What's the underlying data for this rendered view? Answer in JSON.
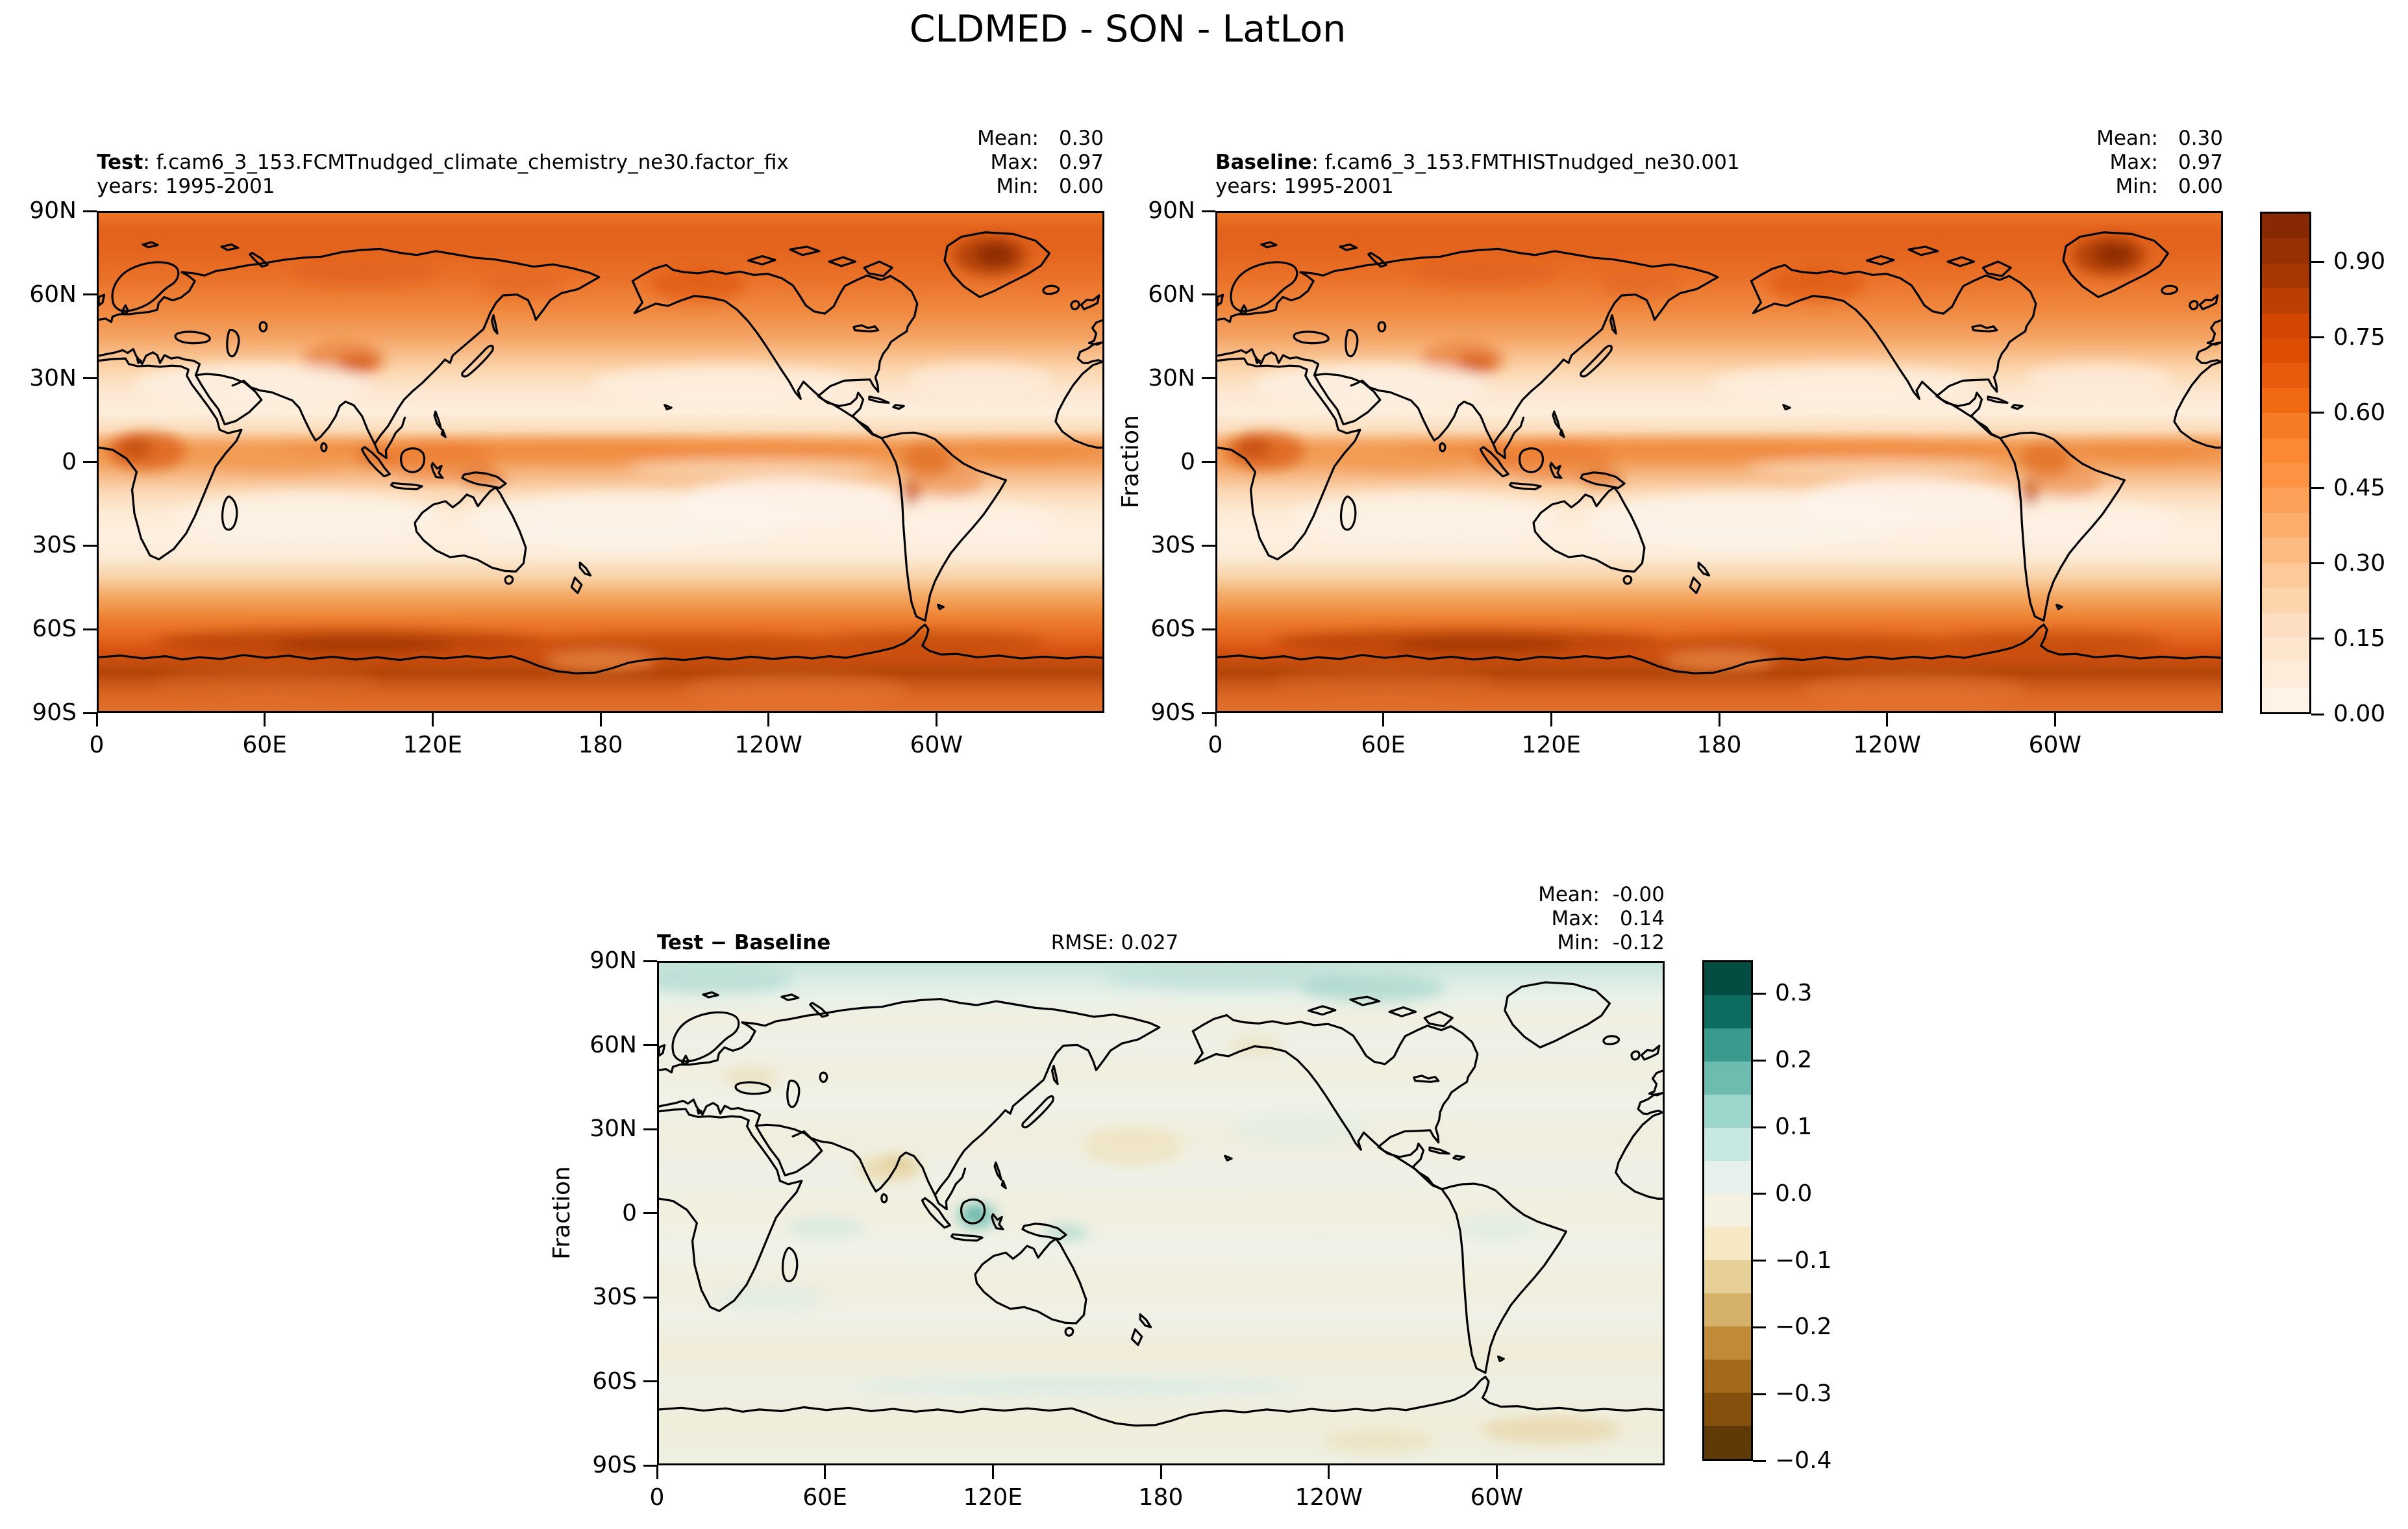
{
  "title": "CLDMED - SON - LatLon",
  "panels": {
    "test": {
      "title_bold": "Test",
      "title_rest": ": f.cam6_3_153.FCMTnudged_climate_chemistry_ne30.factor_fix",
      "years": "years: 1995-2001",
      "stats": {
        "mean_label": "Mean:",
        "mean": "0.30",
        "max_label": "Max:",
        "max": "0.97",
        "min_label": "Min:",
        "min": "0.00"
      }
    },
    "baseline": {
      "title_bold": "Baseline",
      "title_rest": ": f.cam6_3_153.FMTHISTnudged_ne30.001",
      "years": "years: 1995-2001",
      "stats": {
        "mean_label": "Mean:",
        "mean": "0.30",
        "max_label": "Max:",
        "max": "0.97",
        "min_label": "Min:",
        "min": "0.00"
      }
    },
    "diff": {
      "title_bold": "Test − Baseline",
      "rmse": "RMSE: 0.027",
      "stats": {
        "mean_label": "Mean:",
        "mean": "-0.00",
        "max_label": "Max:",
        "max": "0.14",
        "min_label": "Min:",
        "min": "-0.12"
      }
    }
  },
  "axes": {
    "ylabel": "Fraction",
    "lat_ticks": [
      "90N",
      "60N",
      "30N",
      "0",
      "30S",
      "60S",
      "90S"
    ],
    "lon_ticks": [
      "0",
      "60E",
      "120E",
      "180",
      "120W",
      "60W"
    ]
  },
  "colorbar_top": {
    "tick_labels": [
      "0.90",
      "0.75",
      "0.60",
      "0.45",
      "0.30",
      "0.15",
      "0.00"
    ],
    "tick_values": [
      0.9,
      0.75,
      0.6,
      0.45,
      0.3,
      0.15,
      0.0
    ],
    "colors_top_to_bottom": [
      "#872a04",
      "#973103",
      "#a63603",
      "#bc3f02",
      "#d24601",
      "#de4d04",
      "#e75c0c",
      "#f16913",
      "#f57b24",
      "#fa8834",
      "#fd9343",
      "#fda158",
      "#fdae6b",
      "#fdbb81",
      "#fdc99b",
      "#fdd4ab",
      "#fedec3",
      "#fee6ce",
      "#feebd9",
      "#fff2e6"
    ]
  },
  "colorbar_diff": {
    "tick_labels": [
      "0.3",
      "0.2",
      "0.1",
      "0.0",
      "−0.1",
      "−0.2",
      "−0.3",
      "−0.4"
    ],
    "tick_values": [
      0.3,
      0.2,
      0.1,
      0.0,
      -0.1,
      -0.2,
      -0.3,
      -0.4
    ],
    "colors_top_to_bottom": [
      "#024c42",
      "#0d6b60",
      "#3a9a8d",
      "#6cbcb0",
      "#9cd6cb",
      "#c8e8e2",
      "#e6f1ee",
      "#f4f0e2",
      "#f5e8c2",
      "#e7d098",
      "#d6b169",
      "#c08a38",
      "#a5691c",
      "#84500b",
      "#5f3a06"
    ]
  },
  "chart_data": {
    "type": "heatmap",
    "variable": "CLDMED",
    "season": "SON",
    "projection": "LatLon",
    "units": "Fraction",
    "lat_ticks": [
      "90N",
      "60N",
      "30N",
      "0",
      "30S",
      "60S",
      "90S"
    ],
    "lon_ticks": [
      "0",
      "60E",
      "120E",
      "180",
      "120W",
      "60W"
    ],
    "panels": [
      {
        "name": "Test",
        "dataset": "f.cam6_3_153.FCMTnudged_climate_chemistry_ne30.factor_fix",
        "years": "1995-2001",
        "stats": {
          "mean": 0.3,
          "max": 0.97,
          "min": 0.0
        },
        "colormap": "Oranges",
        "levels": [
          0,
          0.05,
          0.1,
          0.15,
          0.2,
          0.25,
          0.3,
          0.35,
          0.4,
          0.45,
          0.5,
          0.55,
          0.6,
          0.65,
          0.7,
          0.75,
          0.8,
          0.85,
          0.9,
          0.95,
          1.0
        ]
      },
      {
        "name": "Baseline",
        "dataset": "f.cam6_3_153.FMTHISTnudged_ne30.001",
        "years": "1995-2001",
        "stats": {
          "mean": 0.3,
          "max": 0.97,
          "min": 0.0
        },
        "colormap": "Oranges",
        "levels": [
          0,
          0.05,
          0.1,
          0.15,
          0.2,
          0.25,
          0.3,
          0.35,
          0.4,
          0.45,
          0.5,
          0.55,
          0.6,
          0.65,
          0.7,
          0.75,
          0.8,
          0.85,
          0.9,
          0.95,
          1.0
        ]
      },
      {
        "name": "Test − Baseline",
        "rmse": 0.027,
        "stats": {
          "mean": -0.0,
          "max": 0.14,
          "min": -0.12
        },
        "colormap": "BrBG",
        "levels": [
          -0.4,
          -0.35,
          -0.3,
          -0.25,
          -0.2,
          -0.15,
          -0.1,
          -0.05,
          0,
          0.05,
          0.1,
          0.15,
          0.2,
          0.25,
          0.3,
          0.35
        ]
      }
    ]
  }
}
